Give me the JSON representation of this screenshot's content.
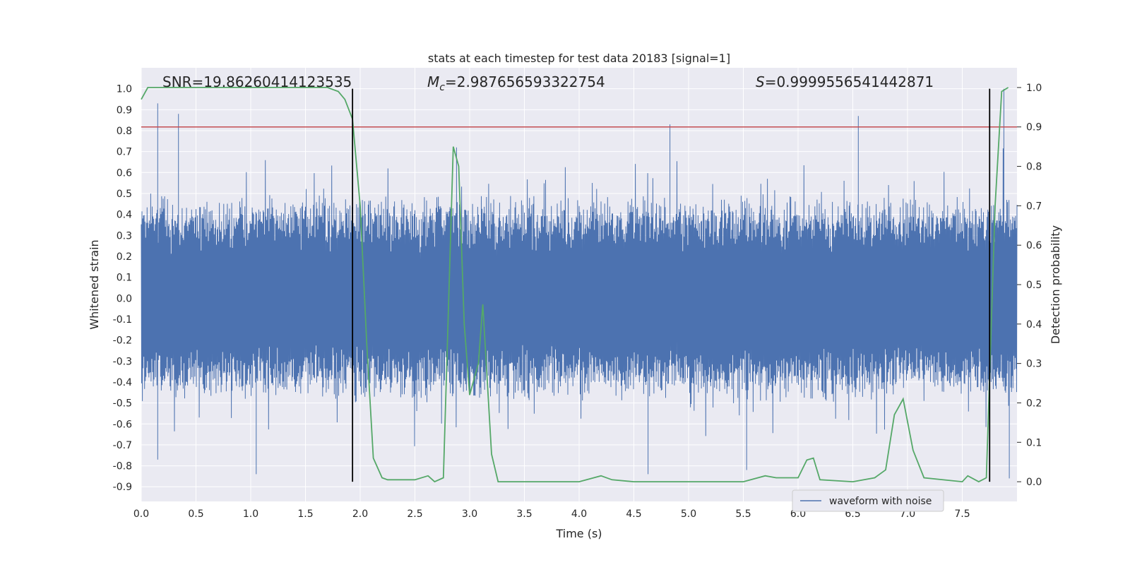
{
  "chart_data": {
    "type": "line",
    "title": "stats at each timestep for test data 20183 [signal=1]",
    "xlabel": "Time (s)",
    "ylabel": "Whitened strain",
    "y2label": "Detection probability",
    "xlim": [
      0,
      8
    ],
    "ylim": [
      -0.97,
      1.1
    ],
    "y2lim": [
      -0.05,
      1.05
    ],
    "xticks": [
      0.0,
      0.5,
      1.0,
      1.5,
      2.0,
      2.5,
      3.0,
      3.5,
      4.0,
      4.5,
      5.0,
      5.5,
      6.0,
      6.5,
      7.0,
      7.5
    ],
    "xtick_labels": [
      "0.0",
      "0.5",
      "1.0",
      "1.5",
      "2.0",
      "2.5",
      "3.0",
      "3.5",
      "4.0",
      "4.5",
      "5.0",
      "5.5",
      "6.0",
      "6.5",
      "7.0",
      "7.5"
    ],
    "yticks": [
      1.0,
      0.9,
      0.8,
      0.7,
      0.6,
      0.5,
      0.4,
      0.3,
      0.2,
      0.1,
      0.0,
      -0.1,
      -0.2,
      -0.3,
      -0.4,
      -0.5,
      -0.6,
      -0.7,
      -0.8,
      -0.9
    ],
    "ytick_labels": [
      "1.0",
      "0.9",
      "0.8",
      "0.7",
      "0.6",
      "0.5",
      "0.4",
      "0.3",
      "0.2",
      "0.1",
      "0.0",
      "-0.1",
      "-0.2",
      "-0.3",
      "-0.4",
      "-0.5",
      "-0.6",
      "-0.7",
      "-0.8",
      "-0.9"
    ],
    "y2ticks": [
      1.0,
      0.9,
      0.8,
      0.7,
      0.6,
      0.5,
      0.4,
      0.3,
      0.2,
      0.1,
      0.0
    ],
    "y2tick_labels": [
      "1.0",
      "0.9",
      "0.8",
      "0.7",
      "0.6",
      "0.5",
      "0.4",
      "0.3",
      "0.2",
      "0.1",
      "0.0"
    ],
    "grid": true,
    "legend_position": "lower-right",
    "annotations": {
      "snr": "SNR=19.86260414123535",
      "mc_symbol": "M",
      "mc_sub": "c",
      "mc_value": "=2.987656593322754",
      "s_symbol": "S",
      "s_value": "=0.9999556541442871"
    },
    "threshold_line": {
      "y2": 0.9,
      "color": "#c44e52"
    },
    "vertical_markers": [
      1.93,
      7.75
    ],
    "series": [
      {
        "name": "waveform with noise",
        "color": "#4c72b0",
        "kind": "strain-noise",
        "x_range": [
          0,
          8
        ],
        "envelope_hi": 0.5,
        "envelope_lo": -0.5,
        "peaks": [
          [
            0.15,
            0.93
          ],
          [
            0.34,
            0.88
          ],
          [
            0.15,
            -0.77
          ],
          [
            1.05,
            -0.84
          ],
          [
            2.88,
            0.72
          ],
          [
            4.83,
            0.83
          ],
          [
            6.55,
            0.87
          ],
          [
            7.88,
            1.0
          ],
          [
            5.53,
            -0.82
          ],
          [
            4.63,
            -0.84
          ],
          [
            7.93,
            -0.86
          ]
        ]
      },
      {
        "name": "",
        "color": "#55a868",
        "kind": "detection-probability",
        "x": [
          0.0,
          0.06,
          0.1,
          0.5,
          1.0,
          1.5,
          1.7,
          1.8,
          1.86,
          1.93,
          2.0,
          2.06,
          2.12,
          2.2,
          2.25,
          2.5,
          2.62,
          2.68,
          2.76,
          2.85,
          2.9,
          2.95,
          3.0,
          3.08,
          3.12,
          3.2,
          3.26,
          3.5,
          4.0,
          4.2,
          4.3,
          4.5,
          5.0,
          5.5,
          5.7,
          5.8,
          6.0,
          6.08,
          6.14,
          6.2,
          6.5,
          6.7,
          6.8,
          6.88,
          6.96,
          7.05,
          7.15,
          7.5,
          7.55,
          7.65,
          7.72,
          7.8,
          7.86,
          7.92
        ],
        "y": [
          0.97,
          1.0,
          1.0,
          1.0,
          1.0,
          1.0,
          1.0,
          0.99,
          0.97,
          0.92,
          0.7,
          0.35,
          0.06,
          0.01,
          0.005,
          0.005,
          0.015,
          0.0,
          0.01,
          0.85,
          0.8,
          0.4,
          0.22,
          0.3,
          0.45,
          0.07,
          0.0,
          0.0,
          0.0,
          0.015,
          0.005,
          0.0,
          0.0,
          0.0,
          0.015,
          0.01,
          0.01,
          0.055,
          0.06,
          0.005,
          0.0,
          0.01,
          0.03,
          0.17,
          0.21,
          0.08,
          0.01,
          0.0,
          0.015,
          0.0,
          0.01,
          0.7,
          0.99,
          1.0
        ]
      }
    ]
  }
}
